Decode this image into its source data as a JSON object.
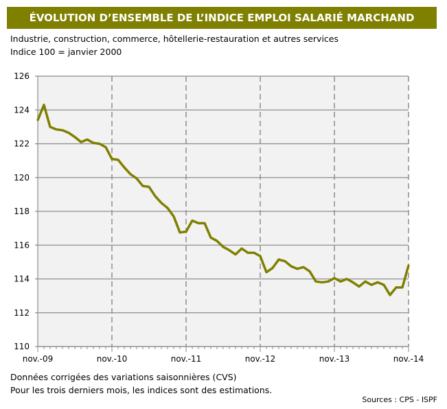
{
  "title": "ÉVOLUTION D’ENSEMBLE DE L’INDICE EMPLOI SALARIÉ MARCHAND",
  "subtitle1": "Industrie, construction, commerce, hôtellerie-restauration et autres services",
  "subtitle2": "Indice 100 = janvier 2000",
  "note1": "Données corrigées des variations saisonnières (CVS)",
  "note2": "Pour les trois derniers mois, les indices sont des estimations.",
  "source": "Sources : CPS - ISPF",
  "chart_data": {
    "type": "line",
    "title": "ÉVOLUTION D’ENSEMBLE DE L’INDICE EMPLOI SALARIÉ MARCHAND",
    "xlabel": "",
    "ylabel": "",
    "x_start": "nov.-09",
    "x_end": "nov.-14",
    "x_frequency": "monthly",
    "x_tick_labels": [
      "nov.-09",
      "nov.-10",
      "nov.-11",
      "nov.-12",
      "nov.-13",
      "nov.-14"
    ],
    "y_ticks": [
      110,
      112,
      114,
      116,
      118,
      120,
      122,
      124,
      126
    ],
    "ylim": [
      110,
      126
    ],
    "grid": {
      "horizontal": "solid",
      "vertical": "dashed"
    },
    "line_color": "#7f7f00",
    "background": "#f2f2f2",
    "series": [
      {
        "values": [
          123.4,
          124.3,
          123.0,
          122.85,
          122.8,
          122.65,
          122.4,
          122.1,
          122.25,
          122.05,
          122.0,
          121.8,
          121.1,
          121.05,
          120.6,
          120.2,
          119.95,
          119.5,
          119.45,
          118.9,
          118.5,
          118.2,
          117.7,
          116.75,
          116.8,
          117.45,
          117.3,
          117.3,
          116.45,
          116.25,
          115.9,
          115.7,
          115.45,
          115.8,
          115.55,
          115.55,
          115.35,
          114.4,
          114.65,
          115.15,
          115.05,
          114.75,
          114.6,
          114.7,
          114.45,
          113.85,
          113.8,
          113.85,
          114.05,
          113.85,
          114.0,
          113.8,
          113.55,
          113.85,
          113.65,
          113.8,
          113.65,
          113.05,
          113.5,
          113.5,
          114.8
        ]
      }
    ]
  }
}
